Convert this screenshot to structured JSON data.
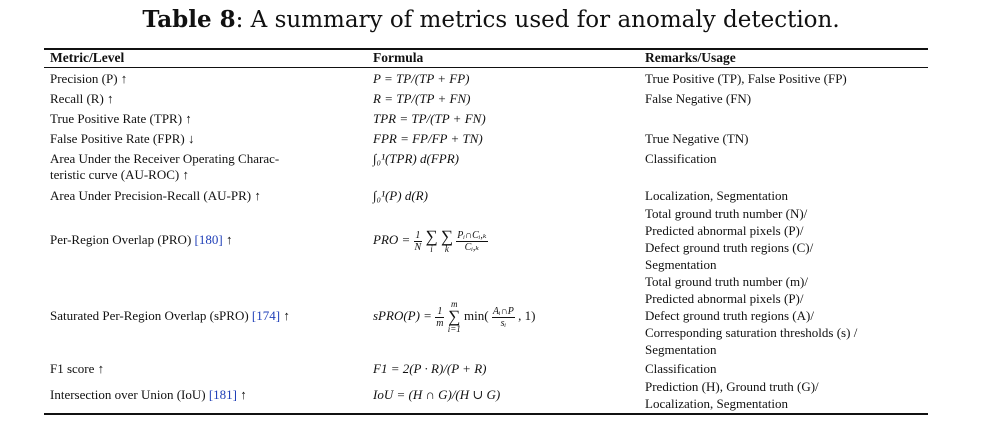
{
  "caption": {
    "label": "Table 8",
    "text": ": A summary of metrics used for anomaly detection."
  },
  "headers": {
    "metric": "Metric/Level",
    "formula": "Formula",
    "remarks": "Remarks/Usage"
  },
  "rows": {
    "precision": {
      "metric": "Precision (P) ↑",
      "formula": "P = TP/(TP + FP)",
      "remarks": "True Positive (TP), False Positive (FP)"
    },
    "recall": {
      "metric": "Recall (R) ↑",
      "formula": "R = TP/(TP + FN)",
      "remarks": "False Negative (FN)"
    },
    "tpr": {
      "metric": "True Positive Rate (TPR) ↑",
      "formula": "TPR = TP/(TP + FN)",
      "remarks": ""
    },
    "fpr": {
      "metric": "False Positive Rate (FPR) ↓",
      "formula": "FPR = FP/FP + TN)",
      "remarks": "True Negative (TN)"
    },
    "auroc": {
      "metric_line1": "Area Under the Receiver Operating Charac-",
      "metric_line2": "teristic curve (AU-ROC) ↑",
      "formula": "∫₀¹(TPR) d(FPR)",
      "remarks": "Classification"
    },
    "aupr": {
      "metric": "Area Under Precision-Recall (AU-PR) ↑",
      "formula": "∫₀¹(P) d(R)",
      "remarks": "Localization, Segmentation"
    },
    "pro": {
      "metric": "Per-Region Overlap (PRO) ",
      "cite": "[180]",
      "arrow": " ↑",
      "formula_lhs": "PRO = ",
      "frac1_num": "1",
      "frac1_den": "N",
      "sum1_sym": "∑",
      "sum1_sub": "i",
      "sum2_sym": "∑",
      "sum2_sub": "k",
      "frac2_num": "Pᵢ∩Cᵢ,ₖ",
      "frac2_den": "Cᵢ,ₖ",
      "remarks": [
        "Total ground truth number (N)/",
        "Predicted abnormal pixels (P)/",
        "Defect ground truth regions (C)/",
        "Segmentation"
      ]
    },
    "spro": {
      "metric": "Saturated Per-Region Overlap (sPRO) ",
      "cite": "[174]",
      "arrow": " ↑",
      "formula_lhs": "sPRO(P) = ",
      "frac1_num": "1",
      "frac1_den": "m",
      "sum_top": "m",
      "sum_sym": "∑",
      "sum_bottom": "i=1",
      "min_text": " min(",
      "frac2_num": "Aᵢ∩P",
      "frac2_den": "sᵢ",
      "tail": ", 1)",
      "remarks": [
        "Total ground truth number (m)/",
        "Predicted abnormal pixels (P)/",
        "Defect ground truth regions (A)/",
        "Corresponding saturation thresholds (s) /",
        "Segmentation"
      ]
    },
    "f1": {
      "metric": "F1 score ↑",
      "formula": "F1 = 2(P · R)/(P + R)",
      "remarks": "Classification"
    },
    "iou": {
      "metric": "Intersection over Union (IoU) ",
      "cite": "[181]",
      "arrow": " ↑",
      "formula": "IoU = (H ∩ G)/(H ∪ G)",
      "remarks": [
        "Prediction (H), Ground truth (G)/",
        "Localization, Segmentation"
      ]
    }
  }
}
